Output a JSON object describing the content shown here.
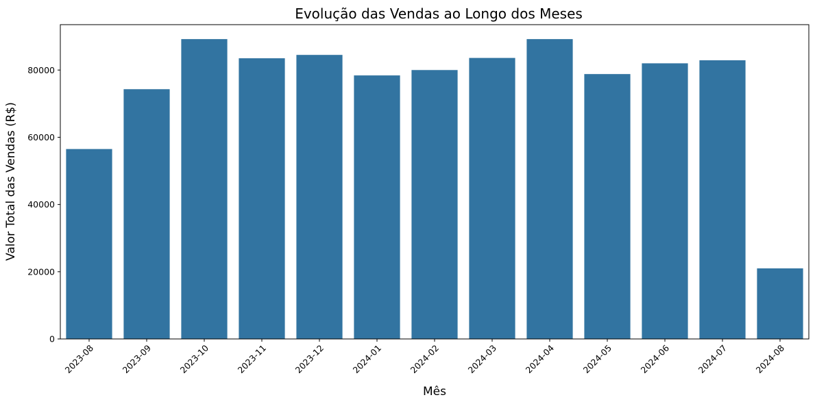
{
  "chart_data": {
    "type": "bar",
    "title": "Evolução das Vendas ao Longo dos Meses",
    "xlabel": "Mês",
    "ylabel": "Valor Total das Vendas (R$)",
    "categories": [
      "2023-08",
      "2023-09",
      "2023-10",
      "2023-11",
      "2023-12",
      "2024-01",
      "2024-02",
      "2024-03",
      "2024-04",
      "2024-05",
      "2024-06",
      "2024-07",
      "2024-08"
    ],
    "values": [
      56500,
      74300,
      89200,
      83500,
      84500,
      78400,
      80000,
      83600,
      89200,
      78800,
      82000,
      82900,
      21000
    ],
    "ylim": [
      0,
      93500
    ],
    "yticks": [
      0,
      20000,
      40000,
      60000,
      80000
    ],
    "ytick_labels": [
      "0",
      "20000",
      "40000",
      "60000",
      "80000"
    ],
    "bar_color": "#3274a1",
    "grid": false,
    "legend": "none",
    "xtick_rotation": "45"
  }
}
